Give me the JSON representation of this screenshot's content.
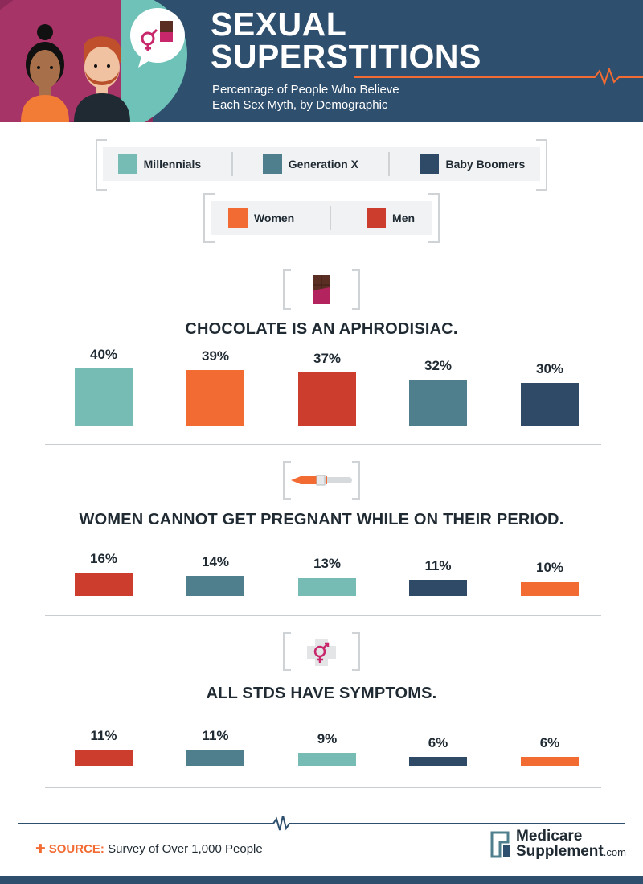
{
  "header": {
    "title_line1": "SEXUAL",
    "title_line2": "SUPERSTITIONS",
    "subtitle_line1": "Percentage of People Who Believe",
    "subtitle_line2": "Each Sex Myth, by Demographic"
  },
  "legend_generations": [
    {
      "label": "Millennials",
      "color": "#76bcb4"
    },
    {
      "label": "Generation X",
      "color": "#4f7f8c"
    },
    {
      "label": "Baby Boomers",
      "color": "#2e4a66"
    }
  ],
  "legend_gender": [
    {
      "label": "Women",
      "color": "#f26b32"
    },
    {
      "label": "Men",
      "color": "#cc3d2e"
    }
  ],
  "colors": {
    "Millennials": "#76bcb4",
    "Generation X": "#4f7f8c",
    "Baby Boomers": "#2e4a66",
    "Women": "#f26b32",
    "Men": "#cc3d2e",
    "header_bg": "#2f4f6e",
    "accent": "#f26b32"
  },
  "chart_data": [
    {
      "type": "bar",
      "title": "CHOCOLATE IS AN APHRODISIAC.",
      "icon": "chocolate-bar-icon",
      "categories": [
        "Millennials",
        "Women",
        "Men",
        "Generation X",
        "Baby Boomers"
      ],
      "values": [
        40,
        39,
        37,
        32,
        30
      ],
      "labels": [
        "40%",
        "39%",
        "37%",
        "32%",
        "30%"
      ],
      "ylim": [
        0,
        40
      ]
    },
    {
      "type": "bar",
      "title": "WOMEN CANNOT GET PREGNANT WHILE ON THEIR PERIOD.",
      "icon": "pregnancy-test-icon",
      "categories": [
        "Men",
        "Generation X",
        "Millennials",
        "Baby Boomers",
        "Women"
      ],
      "values": [
        16,
        14,
        13,
        11,
        10
      ],
      "labels": [
        "16%",
        "14%",
        "13%",
        "11%",
        "10%"
      ],
      "ylim": [
        0,
        40
      ]
    },
    {
      "type": "bar",
      "title": "ALL STDS HAVE SYMPTOMS.",
      "icon": "gender-medical-cross-icon",
      "categories": [
        "Men",
        "Generation X",
        "Millennials",
        "Baby Boomers",
        "Women"
      ],
      "values": [
        11,
        11,
        9,
        6,
        6
      ],
      "labels": [
        "11%",
        "11%",
        "9%",
        "6%",
        "6%"
      ],
      "ylim": [
        0,
        40
      ]
    }
  ],
  "footer": {
    "source_label": "SOURCE:",
    "source_text": "Survey of Over 1,000 People",
    "logo_line1": "Medicare",
    "logo_line2": "Supplement",
    "logo_suffix": ".com"
  }
}
